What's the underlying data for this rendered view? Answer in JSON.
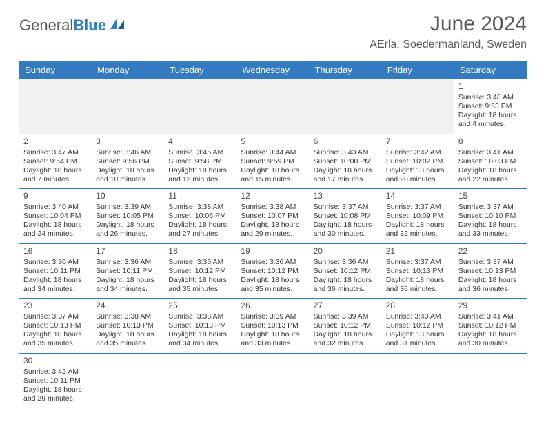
{
  "header": {
    "logo_text_1": "General",
    "logo_text_2": "Blue",
    "month_title": "June 2024",
    "location": "AErla, Soedermanland, Sweden"
  },
  "colors": {
    "header_bg": "#347ac0",
    "text": "#3a3a3a",
    "title": "#595959",
    "logo_blue": "#2f7dc0",
    "empty_bg": "#f1f1f1"
  },
  "day_names": [
    "Sunday",
    "Monday",
    "Tuesday",
    "Wednesday",
    "Thursday",
    "Friday",
    "Saturday"
  ],
  "weeks": [
    [
      {
        "day": "",
        "lines": []
      },
      {
        "day": "",
        "lines": []
      },
      {
        "day": "",
        "lines": []
      },
      {
        "day": "",
        "lines": []
      },
      {
        "day": "",
        "lines": []
      },
      {
        "day": "",
        "lines": []
      },
      {
        "day": "1",
        "lines": [
          "Sunrise: 3:48 AM",
          "Sunset: 9:53 PM",
          "Daylight: 18 hours and 4 minutes."
        ]
      }
    ],
    [
      {
        "day": "2",
        "lines": [
          "Sunrise: 3:47 AM",
          "Sunset: 9:54 PM",
          "Daylight: 18 hours and 7 minutes."
        ]
      },
      {
        "day": "3",
        "lines": [
          "Sunrise: 3:46 AM",
          "Sunset: 9:56 PM",
          "Daylight: 18 hours and 10 minutes."
        ]
      },
      {
        "day": "4",
        "lines": [
          "Sunrise: 3:45 AM",
          "Sunset: 9:58 PM",
          "Daylight: 18 hours and 12 minutes."
        ]
      },
      {
        "day": "5",
        "lines": [
          "Sunrise: 3:44 AM",
          "Sunset: 9:59 PM",
          "Daylight: 18 hours and 15 minutes."
        ]
      },
      {
        "day": "6",
        "lines": [
          "Sunrise: 3:43 AM",
          "Sunset: 10:00 PM",
          "Daylight: 18 hours and 17 minutes."
        ]
      },
      {
        "day": "7",
        "lines": [
          "Sunrise: 3:42 AM",
          "Sunset: 10:02 PM",
          "Daylight: 18 hours and 20 minutes."
        ]
      },
      {
        "day": "8",
        "lines": [
          "Sunrise: 3:41 AM",
          "Sunset: 10:03 PM",
          "Daylight: 18 hours and 22 minutes."
        ]
      }
    ],
    [
      {
        "day": "9",
        "lines": [
          "Sunrise: 3:40 AM",
          "Sunset: 10:04 PM",
          "Daylight: 18 hours and 24 minutes."
        ]
      },
      {
        "day": "10",
        "lines": [
          "Sunrise: 3:39 AM",
          "Sunset: 10:05 PM",
          "Daylight: 18 hours and 26 minutes."
        ]
      },
      {
        "day": "11",
        "lines": [
          "Sunrise: 3:38 AM",
          "Sunset: 10:06 PM",
          "Daylight: 18 hours and 27 minutes."
        ]
      },
      {
        "day": "12",
        "lines": [
          "Sunrise: 3:38 AM",
          "Sunset: 10:07 PM",
          "Daylight: 18 hours and 29 minutes."
        ]
      },
      {
        "day": "13",
        "lines": [
          "Sunrise: 3:37 AM",
          "Sunset: 10:08 PM",
          "Daylight: 18 hours and 30 minutes."
        ]
      },
      {
        "day": "14",
        "lines": [
          "Sunrise: 3:37 AM",
          "Sunset: 10:09 PM",
          "Daylight: 18 hours and 32 minutes."
        ]
      },
      {
        "day": "15",
        "lines": [
          "Sunrise: 3:37 AM",
          "Sunset: 10:10 PM",
          "Daylight: 18 hours and 33 minutes."
        ]
      }
    ],
    [
      {
        "day": "16",
        "lines": [
          "Sunrise: 3:36 AM",
          "Sunset: 10:11 PM",
          "Daylight: 18 hours and 34 minutes."
        ]
      },
      {
        "day": "17",
        "lines": [
          "Sunrise: 3:36 AM",
          "Sunset: 10:11 PM",
          "Daylight: 18 hours and 34 minutes."
        ]
      },
      {
        "day": "18",
        "lines": [
          "Sunrise: 3:36 AM",
          "Sunset: 10:12 PM",
          "Daylight: 18 hours and 35 minutes."
        ]
      },
      {
        "day": "19",
        "lines": [
          "Sunrise: 3:36 AM",
          "Sunset: 10:12 PM",
          "Daylight: 18 hours and 35 minutes."
        ]
      },
      {
        "day": "20",
        "lines": [
          "Sunrise: 3:36 AM",
          "Sunset: 10:12 PM",
          "Daylight: 18 hours and 36 minutes."
        ]
      },
      {
        "day": "21",
        "lines": [
          "Sunrise: 3:37 AM",
          "Sunset: 10:13 PM",
          "Daylight: 18 hours and 36 minutes."
        ]
      },
      {
        "day": "22",
        "lines": [
          "Sunrise: 3:37 AM",
          "Sunset: 10:13 PM",
          "Daylight: 18 hours and 36 minutes."
        ]
      }
    ],
    [
      {
        "day": "23",
        "lines": [
          "Sunrise: 3:37 AM",
          "Sunset: 10:13 PM",
          "Daylight: 18 hours and 35 minutes."
        ]
      },
      {
        "day": "24",
        "lines": [
          "Sunrise: 3:38 AM",
          "Sunset: 10:13 PM",
          "Daylight: 18 hours and 35 minutes."
        ]
      },
      {
        "day": "25",
        "lines": [
          "Sunrise: 3:38 AM",
          "Sunset: 10:13 PM",
          "Daylight: 18 hours and 34 minutes."
        ]
      },
      {
        "day": "26",
        "lines": [
          "Sunrise: 3:39 AM",
          "Sunset: 10:13 PM",
          "Daylight: 18 hours and 33 minutes."
        ]
      },
      {
        "day": "27",
        "lines": [
          "Sunrise: 3:39 AM",
          "Sunset: 10:12 PM",
          "Daylight: 18 hours and 32 minutes."
        ]
      },
      {
        "day": "28",
        "lines": [
          "Sunrise: 3:40 AM",
          "Sunset: 10:12 PM",
          "Daylight: 18 hours and 31 minutes."
        ]
      },
      {
        "day": "29",
        "lines": [
          "Sunrise: 3:41 AM",
          "Sunset: 10:12 PM",
          "Daylight: 18 hours and 30 minutes."
        ]
      }
    ],
    [
      {
        "day": "30",
        "lines": [
          "Sunrise: 3:42 AM",
          "Sunset: 10:11 PM",
          "Daylight: 18 hours and 29 minutes."
        ]
      },
      {
        "day": "",
        "lines": []
      },
      {
        "day": "",
        "lines": []
      },
      {
        "day": "",
        "lines": []
      },
      {
        "day": "",
        "lines": []
      },
      {
        "day": "",
        "lines": []
      },
      {
        "day": "",
        "lines": []
      }
    ]
  ]
}
